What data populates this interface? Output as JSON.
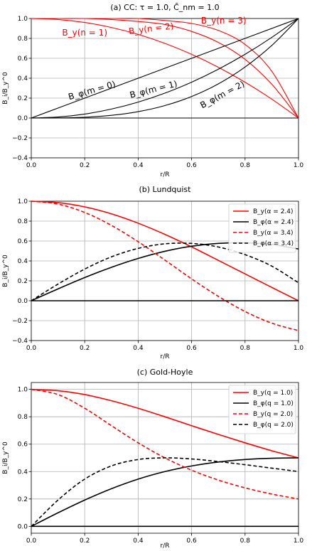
{
  "chart_data": [
    {
      "type": "line",
      "title": "(a) CC: τ = 1.0, C̄_nm = 1.0",
      "xlabel": "r/R",
      "ylabel": "B_i/B_y^0",
      "xlim": [
        0.0,
        1.0
      ],
      "ylim": [
        -0.4,
        1.0
      ],
      "xticks": [
        "0.0",
        "0.2",
        "0.4",
        "0.6",
        "0.8",
        "1.0"
      ],
      "yticks": [
        "−0.4",
        "−0.2",
        "0.0",
        "0.2",
        "0.4",
        "0.6",
        "0.8",
        "1.0"
      ],
      "grid": true,
      "colors": {
        "red": "#ff0000",
        "black": "#000000"
      },
      "series": [
        {
          "color": "#ff0000",
          "dash": "solid",
          "x": [
            0,
            0.1,
            0.2,
            0.3,
            0.4,
            0.5,
            0.6,
            0.7,
            0.8,
            0.9,
            1.0
          ],
          "y": [
            1,
            0.99,
            0.96,
            0.91,
            0.84,
            0.75,
            0.64,
            0.51,
            0.36,
            0.19,
            0
          ]
        },
        {
          "color": "#ff0000",
          "dash": "solid",
          "x": [
            0,
            0.1,
            0.2,
            0.3,
            0.4,
            0.5,
            0.6,
            0.7,
            0.8,
            0.9,
            1.0
          ],
          "y": [
            1,
            1.0,
            1.0,
            0.99,
            0.97,
            0.94,
            0.87,
            0.76,
            0.59,
            0.34,
            0
          ]
        },
        {
          "color": "#ff0000",
          "dash": "solid",
          "x": [
            0,
            0.1,
            0.2,
            0.3,
            0.4,
            0.5,
            0.6,
            0.7,
            0.8,
            0.9,
            1.0
          ],
          "y": [
            1,
            1.0,
            1.0,
            1.0,
            1.0,
            0.98,
            0.95,
            0.88,
            0.74,
            0.47,
            0
          ]
        },
        {
          "color": "#000000",
          "dash": "solid",
          "x": [
            0,
            0.1,
            0.2,
            0.3,
            0.4,
            0.5,
            0.6,
            0.7,
            0.8,
            0.9,
            1.0
          ],
          "y": [
            0,
            0.1,
            0.2,
            0.3,
            0.4,
            0.5,
            0.6,
            0.7,
            0.8,
            0.9,
            1.0
          ]
        },
        {
          "color": "#000000",
          "dash": "solid",
          "x": [
            0,
            0.1,
            0.2,
            0.3,
            0.4,
            0.5,
            0.6,
            0.7,
            0.8,
            0.9,
            1.0
          ],
          "y": [
            0,
            0.01,
            0.04,
            0.09,
            0.16,
            0.25,
            0.36,
            0.49,
            0.64,
            0.81,
            1.0
          ]
        },
        {
          "color": "#000000",
          "dash": "solid",
          "x": [
            0,
            0.1,
            0.2,
            0.3,
            0.4,
            0.5,
            0.6,
            0.7,
            0.8,
            0.9,
            1.0
          ],
          "y": [
            0,
            0.001,
            0.008,
            0.027,
            0.064,
            0.125,
            0.216,
            0.343,
            0.512,
            0.729,
            1.0
          ]
        },
        {
          "color": "#000000",
          "dash": "solid",
          "x": [
            0,
            1.0
          ],
          "y": [
            0,
            0
          ]
        }
      ],
      "annotations": [
        {
          "text": "B_y(n = 1)",
          "x": 0.2,
          "y": 0.83,
          "color": "#ff0000",
          "rotate": 0
        },
        {
          "text": "B_y(n = 2)",
          "x": 0.45,
          "y": 0.87,
          "color": "#ff0000",
          "rotate": -7
        },
        {
          "text": "B_y(n = 3)",
          "x": 0.72,
          "y": 0.95,
          "color": "#ff0000",
          "rotate": 0
        },
        {
          "text": "B_φ(m = 0)",
          "x": 0.23,
          "y": 0.25,
          "color": "#000000",
          "rotate": -16
        },
        {
          "text": "B_φ(m = 1)",
          "x": 0.46,
          "y": 0.26,
          "color": "#000000",
          "rotate": -14
        },
        {
          "text": "B_φ(m = 2)",
          "x": 0.72,
          "y": 0.21,
          "color": "#000000",
          "rotate": -28
        }
      ]
    },
    {
      "type": "line",
      "title": "(b) Lundquist",
      "xlabel": "r/R",
      "ylabel": "B_i/B_y^0",
      "xlim": [
        0.0,
        1.0
      ],
      "ylim": [
        -0.4,
        1.0
      ],
      "xticks": [
        "0.0",
        "0.2",
        "0.4",
        "0.6",
        "0.8",
        "1.0"
      ],
      "yticks": [
        "−0.4",
        "−0.2",
        "0.0",
        "0.2",
        "0.4",
        "0.6",
        "0.8",
        "1.0"
      ],
      "grid": true,
      "legend": "top-right",
      "series": [
        {
          "name": "B_y(α = 2.4)",
          "color": "#ff0000",
          "dash": "solid",
          "x": [
            0,
            0.1,
            0.2,
            0.3,
            0.4,
            0.5,
            0.6,
            0.7,
            0.8,
            0.9,
            1.0
          ],
          "y": [
            1,
            0.986,
            0.943,
            0.873,
            0.779,
            0.667,
            0.541,
            0.406,
            0.27,
            0.134,
            0
          ]
        },
        {
          "name": "B_φ(α = 2.4)",
          "color": "#000000",
          "dash": "solid",
          "x": [
            0,
            0.1,
            0.2,
            0.3,
            0.4,
            0.5,
            0.6,
            0.7,
            0.8,
            0.9,
            1.0
          ],
          "y": [
            0,
            0.119,
            0.233,
            0.336,
            0.425,
            0.497,
            0.548,
            0.576,
            0.582,
            0.565,
            0.52
          ]
        },
        {
          "name": "B_y(α = 3.4)",
          "color": "#ff0000",
          "dash": "dashed",
          "x": [
            0,
            0.1,
            0.2,
            0.3,
            0.4,
            0.5,
            0.6,
            0.7,
            0.8,
            0.9,
            1.0
          ],
          "y": [
            1,
            0.971,
            0.887,
            0.757,
            0.593,
            0.409,
            0.22,
            0.044,
            -0.108,
            -0.225,
            -0.3
          ]
        },
        {
          "name": "B_φ(α = 3.4)",
          "color": "#000000",
          "dash": "dashed",
          "x": [
            0,
            0.1,
            0.2,
            0.3,
            0.4,
            0.5,
            0.6,
            0.7,
            0.8,
            0.9,
            1.0
          ],
          "y": [
            0,
            0.167,
            0.318,
            0.441,
            0.526,
            0.572,
            0.576,
            0.54,
            0.463,
            0.348,
            0.18
          ]
        },
        {
          "color": "#000000",
          "dash": "solid",
          "x": [
            0,
            1.0
          ],
          "y": [
            0,
            0
          ]
        }
      ]
    },
    {
      "type": "line",
      "title": "(c) Gold-Hoyle",
      "xlabel": "r/R",
      "ylabel": "B_i/B_y^0",
      "xlim": [
        0.0,
        1.0
      ],
      "ylim": [
        -0.05,
        1.05
      ],
      "xticks": [
        "0.0",
        "0.2",
        "0.4",
        "0.6",
        "0.8",
        "1.0"
      ],
      "yticks": [
        "0.0",
        "0.2",
        "0.4",
        "0.6",
        "0.8",
        "1.0"
      ],
      "grid": true,
      "legend": "top-right",
      "series": [
        {
          "name": "B_y(q = 1.0)",
          "color": "#ff0000",
          "dash": "solid",
          "x": [
            0,
            0.1,
            0.2,
            0.3,
            0.4,
            0.5,
            0.6,
            0.7,
            0.8,
            0.9,
            1.0
          ],
          "y": [
            1,
            0.99,
            0.962,
            0.917,
            0.862,
            0.8,
            0.735,
            0.671,
            0.61,
            0.552,
            0.5
          ]
        },
        {
          "name": "B_φ(q = 1.0)",
          "color": "#000000",
          "dash": "solid",
          "x": [
            0,
            0.1,
            0.2,
            0.3,
            0.4,
            0.5,
            0.6,
            0.7,
            0.8,
            0.9,
            1.0
          ],
          "y": [
            0,
            0.099,
            0.192,
            0.275,
            0.345,
            0.4,
            0.441,
            0.47,
            0.488,
            0.497,
            0.5
          ]
        },
        {
          "name": "B_y(q = 2.0)",
          "color": "#ff0000",
          "dash": "dashed",
          "x": [
            0,
            0.1,
            0.2,
            0.3,
            0.4,
            0.5,
            0.6,
            0.7,
            0.8,
            0.9,
            1.0
          ],
          "y": [
            1,
            0.962,
            0.862,
            0.735,
            0.61,
            0.5,
            0.41,
            0.338,
            0.281,
            0.236,
            0.2
          ]
        },
        {
          "name": "B_φ(q = 2.0)",
          "color": "#000000",
          "dash": "dashed",
          "x": [
            0,
            0.1,
            0.2,
            0.3,
            0.4,
            0.5,
            0.6,
            0.7,
            0.8,
            0.9,
            1.0
          ],
          "y": [
            0,
            0.192,
            0.345,
            0.441,
            0.488,
            0.5,
            0.492,
            0.473,
            0.45,
            0.425,
            0.4
          ]
        },
        {
          "color": "#000000",
          "dash": "solid",
          "x": [
            0,
            1.0
          ],
          "y": [
            0,
            0
          ]
        }
      ]
    }
  ]
}
